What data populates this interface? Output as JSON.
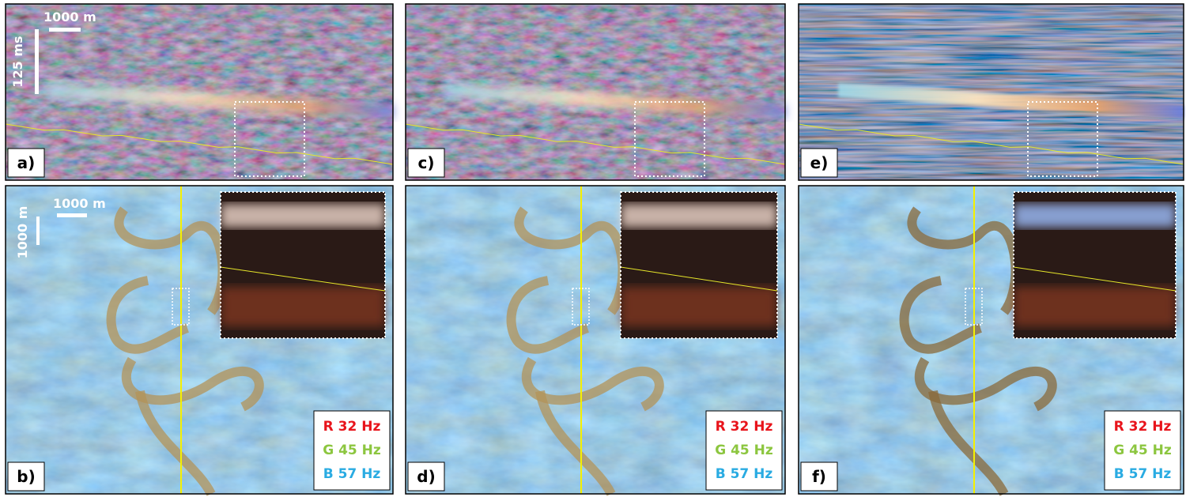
{
  "panels": [
    {
      "label": "a)"
    },
    {
      "label": "b)",
      "legend": [
        "R 32 Hz",
        "G 45 Hz",
        "B 57 Hz"
      ]
    },
    {
      "label": "c)"
    },
    {
      "label": "d)",
      "legend": [
        "R 32 Hz",
        "G 45 Hz",
        "B 57 Hz"
      ]
    },
    {
      "label": "e)"
    },
    {
      "label": "f)",
      "legend": [
        "R 32 Hz",
        "G 45 Hz",
        "B 57 Hz"
      ]
    }
  ],
  "scale_bars": {
    "section_horizontal": "1000 m",
    "section_vertical": "125 ms",
    "map_horizontal": "1000 m",
    "map_vertical": "1000 m"
  }
}
